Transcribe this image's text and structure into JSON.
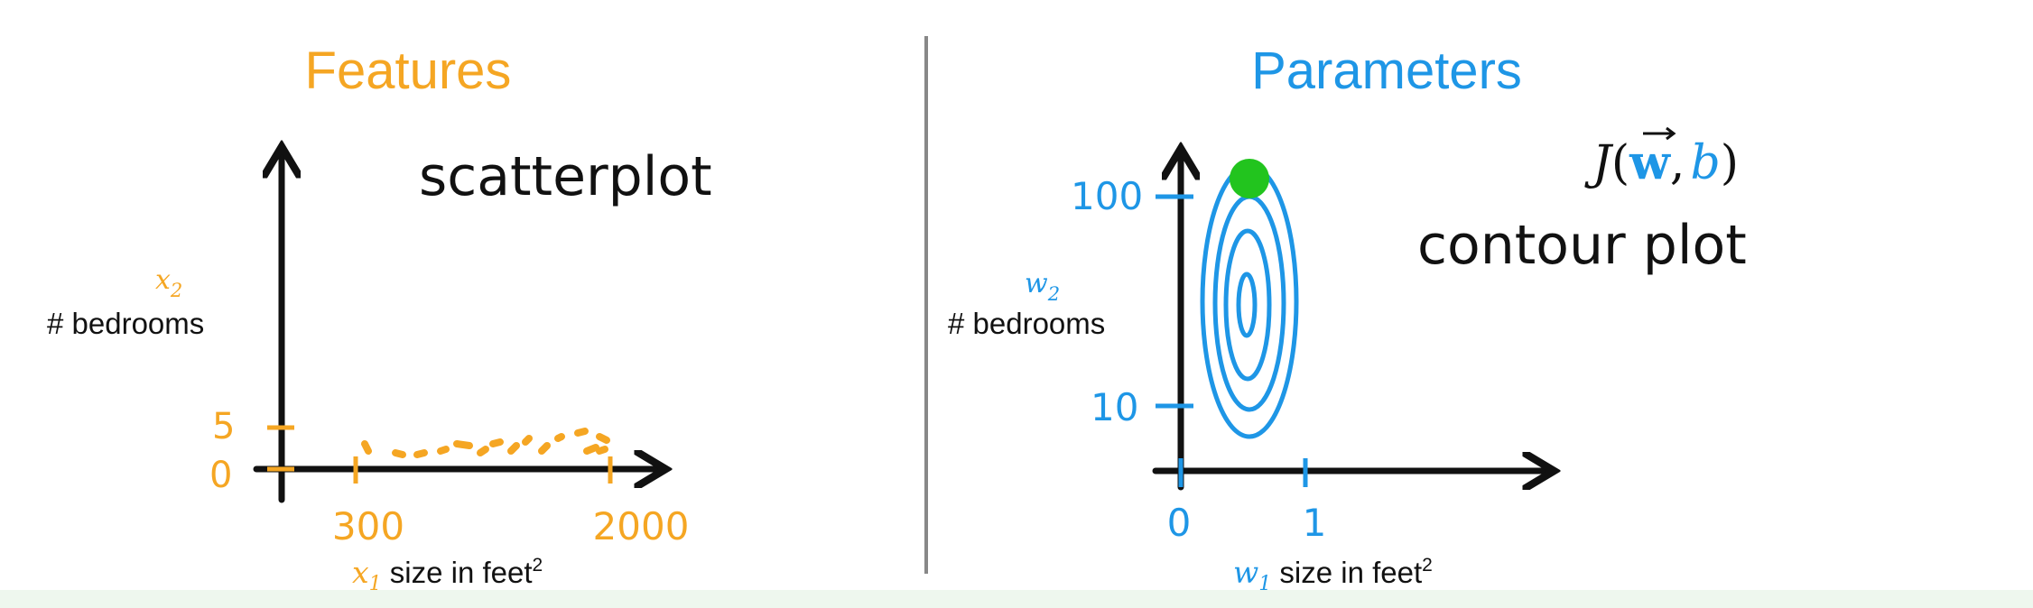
{
  "left": {
    "title": "Features",
    "caption": "scatterplot",
    "y_var": "x",
    "y_sub": "2",
    "y_label": "# bedrooms",
    "y_ticks": [
      "5",
      "0"
    ],
    "x_ticks": [
      "300",
      "2000"
    ],
    "x_var": "x",
    "x_sub": "1",
    "x_label": " size in feet",
    "x_sup": "2"
  },
  "right": {
    "title": "Parameters",
    "cost_J": "J",
    "cost_open": "(",
    "cost_w": "w",
    "cost_comma": ",",
    "cost_b": "b",
    "cost_close": ")",
    "caption": "contour plot",
    "y_var": "w",
    "y_sub": "2",
    "y_label": "# bedrooms",
    "y_ticks": [
      "100",
      "10"
    ],
    "x_ticks": [
      "0",
      "1"
    ],
    "x_var": "w",
    "x_sub": "1",
    "x_label": " size in feet",
    "x_sup": "2"
  },
  "colors": {
    "features": "#F5A623",
    "parameters": "#1E96E6",
    "ink": "#111111",
    "minimum_dot": "#22C41E",
    "divider": "#888888"
  }
}
